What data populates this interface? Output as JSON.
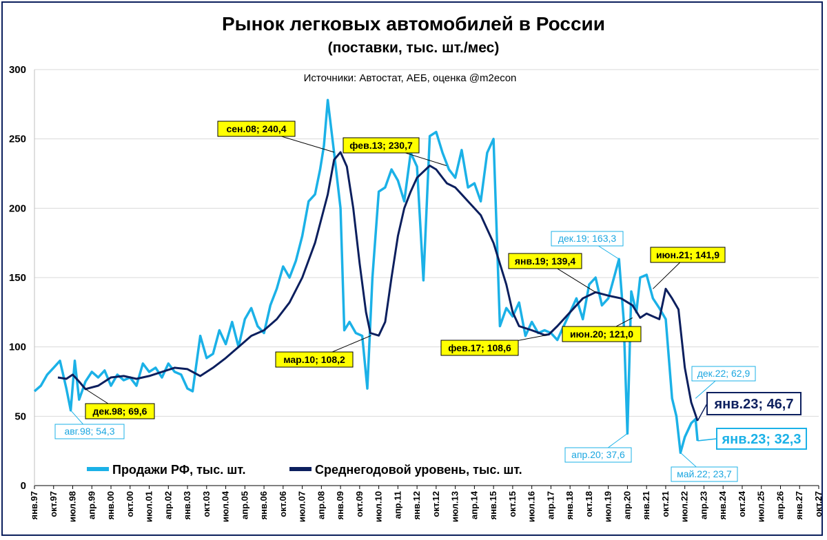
{
  "title": "Рынок легковых автомобилей в России",
  "subtitle": "(поставки, тыс. шт./мес)",
  "source": "Источники: Автостат, АЕБ, оценка @m2econ",
  "colors": {
    "sales": "#1bb1e7",
    "avg": "#0c1f5e",
    "label_yellow_bg": "#ffff00",
    "grid": "#d9d9d9"
  },
  "chart_data": {
    "type": "line",
    "title": "Рынок легковых автомобилей в России",
    "ylabel": "тыс. шт./мес",
    "ylim": [
      0,
      300
    ],
    "yticks": [
      0,
      50,
      100,
      150,
      200,
      250,
      300
    ],
    "x_range_years": [
      1997,
      2027.75
    ],
    "xtick_labels": [
      "янв.97",
      "окт.97",
      "июл.98",
      "апр.99",
      "янв.00",
      "окт.00",
      "июл.01",
      "апр.02",
      "янв.03",
      "окт.03",
      "июл.04",
      "апр.05",
      "янв.06",
      "окт.06",
      "июл.07",
      "апр.08",
      "янв.09",
      "окт.09",
      "июл.10",
      "апр.11",
      "янв.12",
      "окт.12",
      "июл.13",
      "апр.14",
      "янв.15",
      "окт.15",
      "июл.16",
      "апр.17",
      "янв.18",
      "окт.18",
      "июл.19",
      "апр.20",
      "янв.21",
      "окт.21",
      "июл.22",
      "апр.23",
      "янв.24",
      "окт.24",
      "июл.25",
      "апр.26",
      "янв.27",
      "окт.27"
    ],
    "grid": true,
    "legend_position": "bottom-left",
    "series": [
      {
        "name": "Продажи РФ, тыс. шт.",
        "color": "#1bb1e7",
        "x": [
          1997.0,
          1997.25,
          1997.5,
          1997.75,
          1998.0,
          1998.25,
          1998.42,
          1998.58,
          1998.75,
          1999.0,
          1999.25,
          1999.5,
          1999.75,
          2000.0,
          2000.25,
          2000.5,
          2000.75,
          2001.0,
          2001.25,
          2001.5,
          2001.75,
          2002.0,
          2002.25,
          2002.5,
          2002.75,
          2003.0,
          2003.2,
          2003.5,
          2003.75,
          2004.0,
          2004.25,
          2004.5,
          2004.75,
          2005.0,
          2005.25,
          2005.5,
          2005.75,
          2006.0,
          2006.25,
          2006.5,
          2006.75,
          2007.0,
          2007.25,
          2007.5,
          2007.75,
          2008.0,
          2008.2,
          2008.35,
          2008.5,
          2008.75,
          2009.0,
          2009.15,
          2009.35,
          2009.6,
          2009.85,
          2010.05,
          2010.25,
          2010.5,
          2010.75,
          2011.0,
          2011.25,
          2011.5,
          2011.75,
          2012.0,
          2012.25,
          2012.5,
          2012.75,
          2013.0,
          2013.25,
          2013.5,
          2013.75,
          2014.0,
          2014.25,
          2014.5,
          2014.75,
          2015.0,
          2015.25,
          2015.5,
          2015.75,
          2016.0,
          2016.25,
          2016.5,
          2016.75,
          2017.0,
          2017.25,
          2017.5,
          2017.75,
          2018.0,
          2018.25,
          2018.5,
          2018.75,
          2019.0,
          2019.25,
          2019.5,
          2019.92,
          2020.1,
          2020.25,
          2020.4,
          2020.6,
          2020.75,
          2021.0,
          2021.25,
          2021.5,
          2021.75,
          2022.0,
          2022.17,
          2022.33,
          2022.5,
          2022.75,
          2022.92,
          2023.0
        ],
        "y": [
          68,
          72,
          80,
          85,
          90,
          70,
          54.3,
          90,
          62,
          75,
          82,
          78,
          83,
          72,
          80,
          76,
          78,
          72,
          88,
          82,
          85,
          78,
          88,
          82,
          80,
          70,
          68,
          108,
          92,
          95,
          112,
          102,
          118,
          100,
          120,
          128,
          115,
          110,
          130,
          142,
          158,
          150,
          162,
          180,
          205,
          210,
          228,
          245,
          278,
          240,
          200,
          112,
          118,
          110,
          108,
          70,
          150,
          212,
          215,
          228,
          220,
          205,
          240,
          230,
          148,
          252,
          255,
          240,
          228,
          222,
          242,
          215,
          218,
          205,
          240,
          250,
          115,
          128,
          122,
          132,
          108,
          118,
          110,
          112,
          110,
          105,
          115,
          125,
          135,
          120,
          145,
          150,
          130,
          135,
          163.3,
          120,
          37.6,
          140,
          125,
          150,
          152,
          135,
          128,
          120,
          62.9,
          50,
          23.7,
          35,
          45,
          48,
          32.3
        ]
      },
      {
        "name": "Среднегодовой уровень, тыс. шт.",
        "color": "#0c1f5e",
        "x": [
          1997.92,
          1998.25,
          1998.5,
          1998.75,
          1999.0,
          1999.5,
          2000.0,
          2000.5,
          2001.0,
          2001.5,
          2002.0,
          2002.5,
          2003.0,
          2003.5,
          2004.0,
          2004.5,
          2005.0,
          2005.5,
          2006.0,
          2006.5,
          2007.0,
          2007.5,
          2008.0,
          2008.5,
          2008.75,
          2009.0,
          2009.25,
          2009.5,
          2009.75,
          2010.0,
          2010.17,
          2010.5,
          2010.75,
          2011.0,
          2011.25,
          2011.5,
          2011.75,
          2012.0,
          2012.5,
          2012.75,
          2013.0,
          2013.17,
          2013.5,
          2013.75,
          2014.0,
          2014.5,
          2015.0,
          2015.5,
          2015.75,
          2016.0,
          2016.5,
          2017.0,
          2017.17,
          2017.5,
          2018.0,
          2018.5,
          2019.0,
          2019.5,
          2020.0,
          2020.45,
          2020.75,
          2021.0,
          2021.25,
          2021.5,
          2021.75,
          2022.0,
          2022.25,
          2022.5,
          2022.75,
          2023.0
        ],
        "y": [
          78,
          77,
          80,
          75,
          69.6,
          72,
          78,
          79,
          77,
          79,
          82,
          85,
          84,
          79,
          85,
          92,
          100,
          108,
          112,
          120,
          132,
          150,
          175,
          210,
          235,
          240.4,
          230,
          200,
          160,
          125,
          110,
          108.2,
          118,
          150,
          180,
          200,
          212,
          222,
          230.7,
          228,
          222,
          218,
          215,
          210,
          205,
          195,
          175,
          145,
          125,
          115,
          112,
          108.6,
          109,
          115,
          125,
          135,
          139.4,
          137,
          135,
          130,
          121,
          124,
          122,
          120,
          141.9,
          135,
          127,
          85,
          60,
          46.7
        ]
      }
    ],
    "annotations_yellow": [
      {
        "text": "сен.08;  240,4"
      },
      {
        "text": "фев.13;  230,7"
      },
      {
        "text": "мар.10;  108,2"
      },
      {
        "text": "фев.17;  108,6"
      },
      {
        "text": "янв.19;  139,4"
      },
      {
        "text": "июн.21;  141,9"
      },
      {
        "text": "июн.20;  121,0"
      },
      {
        "text": "дек.98;  69,6"
      }
    ],
    "annotations_blue": [
      {
        "text": "авг.98; 54,3"
      },
      {
        "text": "дек.19; 163,3"
      },
      {
        "text": "дек.22; 62,9"
      },
      {
        "text": "апр.20; 37,6"
      },
      {
        "text": "май.22; 23,7"
      }
    ],
    "annotations_big": [
      {
        "text": "янв.23;  46,7",
        "color": "#0c1f5e"
      },
      {
        "text": "янв.23; 32,3",
        "color": "#1bb1e7"
      }
    ]
  },
  "legend": {
    "sales": "Продажи РФ, тыс. шт.",
    "avg": "Среднегодовой уровень, тыс. шт."
  }
}
